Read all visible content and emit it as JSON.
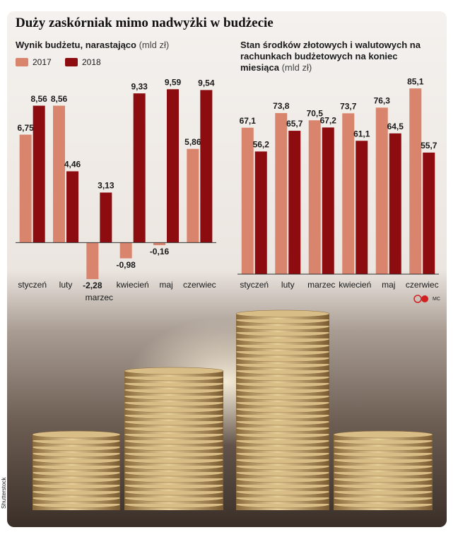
{
  "title": "Duży zaskórniak mimo nadwyżki w budżecie",
  "chart_data": [
    {
      "type": "bar",
      "title": "Wynik budżetu, narastająco",
      "unit": "(mld zł)",
      "categories": [
        "styczeń",
        "luty",
        "marzec",
        "kwiecień",
        "maj",
        "czerwiec"
      ],
      "series": [
        {
          "name": "2017",
          "color": "#d9846c",
          "values": [
            6.75,
            8.56,
            -2.28,
            -0.98,
            -0.16,
            5.86
          ],
          "value_labels": [
            "6,75",
            "8,56",
            "-2,28",
            "-0,98",
            "-0,16",
            "5,86"
          ]
        },
        {
          "name": "2018",
          "color": "#8c0c0f",
          "values": [
            8.56,
            4.46,
            3.13,
            9.33,
            9.59,
            9.54
          ],
          "value_labels": [
            "8,56",
            "4,46",
            "3,13",
            "9,33",
            "9,59",
            "9,54"
          ]
        }
      ],
      "ylim": [
        -2.5,
        10
      ],
      "legend": "top-left"
    },
    {
      "type": "bar",
      "title": "Stan środków złotowych i walutowych na rachunkach budżetowych na koniec miesiąca",
      "unit": "(mld zł)",
      "categories": [
        "styczeń",
        "luty",
        "marzec",
        "kwiecień",
        "maj",
        "czerwiec"
      ],
      "series": [
        {
          "color": "#d9846c",
          "values": [
            67.1,
            73.8,
            70.5,
            73.7,
            76.3,
            85.1
          ],
          "value_labels": [
            "67,1",
            "73,8",
            "70,5",
            "73,7",
            "76,3",
            "85,1"
          ]
        },
        {
          "color": "#8c0c0f",
          "values": [
            56.2,
            65.7,
            67.2,
            61.1,
            64.5,
            55.7
          ],
          "value_labels": [
            "56,2",
            "65,7",
            "67,2",
            "61,1",
            "64,5",
            "55,7"
          ]
        }
      ],
      "ylim": [
        0,
        90
      ]
    }
  ],
  "credit": "MC",
  "photo_credit": "Shutterstock"
}
